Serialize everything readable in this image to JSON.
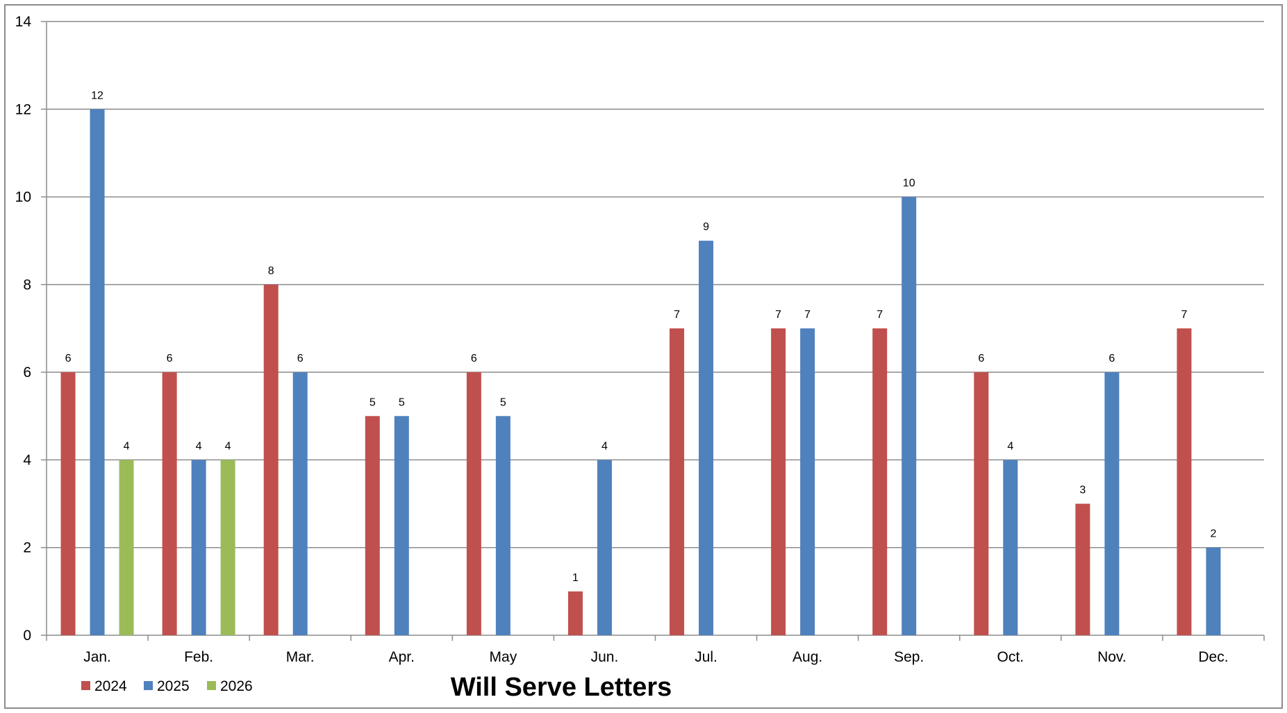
{
  "chart_data": {
    "type": "bar",
    "title": "Will Serve Letters",
    "xlabel": "",
    "ylabel": "",
    "ylim": [
      0,
      14
    ],
    "yticks": [
      "0",
      "2",
      "4",
      "6",
      "8",
      "10",
      "12",
      "14"
    ],
    "grid": true,
    "legend_position": "bottom-left",
    "categories": [
      "Jan.",
      "Feb.",
      "Mar.",
      "Apr.",
      "May",
      "Jun.",
      "Jul.",
      "Aug.",
      "Sep.",
      "Oct.",
      "Nov.",
      "Dec."
    ],
    "series": [
      {
        "name": "2024",
        "color": "#C0504D",
        "values": [
          6,
          6,
          8,
          5,
          6,
          1,
          7,
          7,
          7,
          6,
          3,
          7
        ]
      },
      {
        "name": "2025",
        "color": "#4F81BD",
        "values": [
          12,
          4,
          6,
          5,
          5,
          4,
          9,
          7,
          10,
          4,
          6,
          2
        ]
      },
      {
        "name": "2026",
        "color": "#9BBB59",
        "values": [
          4,
          4,
          null,
          null,
          null,
          null,
          null,
          null,
          null,
          null,
          null,
          null
        ]
      }
    ]
  }
}
